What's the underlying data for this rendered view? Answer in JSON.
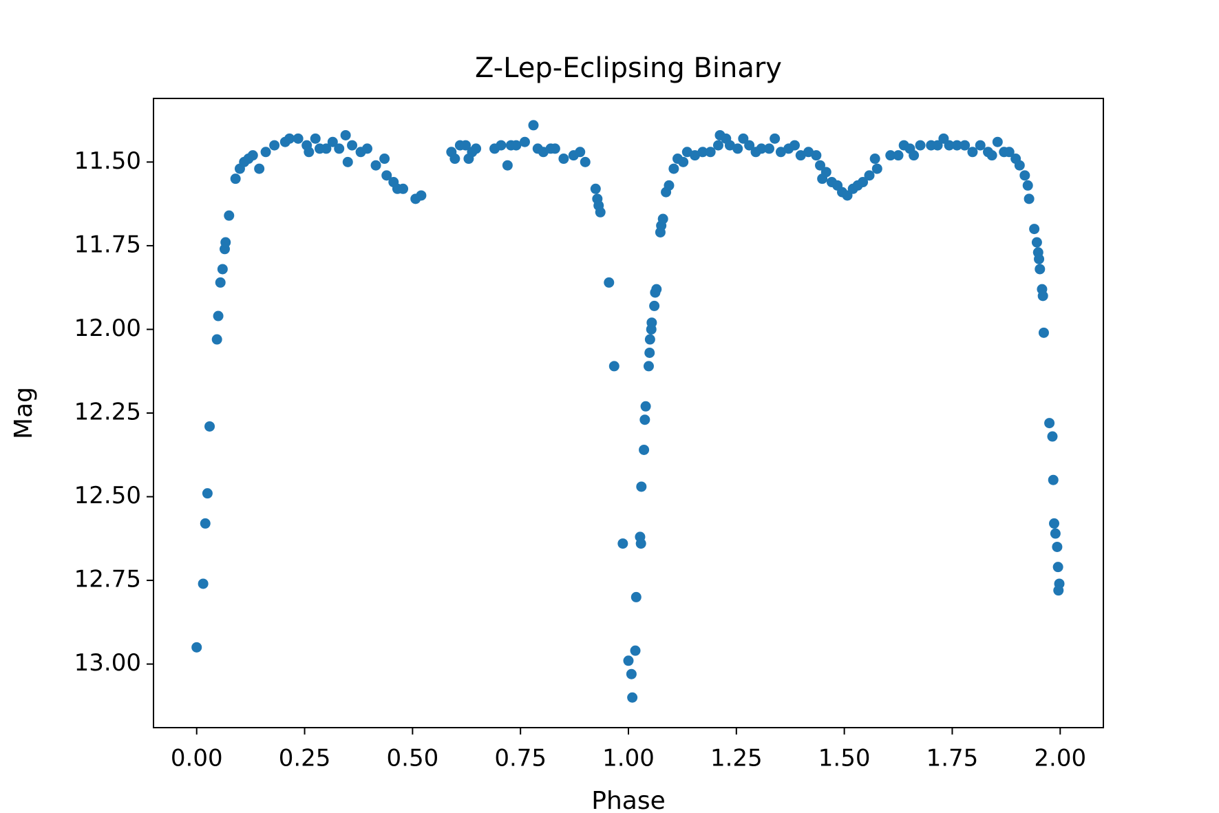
{
  "chart_data": {
    "type": "scatter",
    "title": "Z-Lep-Eclipsing Binary",
    "x_label": "Phase",
    "y_label": "Mag",
    "color": "#1f77b4",
    "invert_y": true,
    "xlim": [
      -0.1,
      2.1
    ],
    "ylim": [
      11.31,
      13.19
    ],
    "xticks": [
      {
        "value": 0,
        "label": "0.00"
      },
      {
        "value": 0.25,
        "label": "0.25"
      },
      {
        "value": 0.5,
        "label": "0.50"
      },
      {
        "value": 0.75,
        "label": "0.75"
      },
      {
        "value": 1,
        "label": "1.00"
      },
      {
        "value": 1.25,
        "label": "1.25"
      },
      {
        "value": 1.5,
        "label": "1.50"
      },
      {
        "value": 1.75,
        "label": "1.75"
      },
      {
        "value": 2,
        "label": "2.00"
      }
    ],
    "yticks": [
      {
        "value": 11.5,
        "label": "11.50"
      },
      {
        "value": 11.75,
        "label": "11.75"
      },
      {
        "value": 12,
        "label": "12.00"
      },
      {
        "value": 12.25,
        "label": "12.25"
      },
      {
        "value": 12.5,
        "label": "12.50"
      },
      {
        "value": 12.75,
        "label": "12.75"
      },
      {
        "value": 13,
        "label": "13.00"
      }
    ],
    "x": [
      0.0,
      0.015,
      0.02,
      0.025,
      0.03,
      0.047,
      0.05,
      0.055,
      0.06,
      0.065,
      0.067,
      0.075,
      0.09,
      0.1,
      0.11,
      0.12,
      0.13,
      0.145,
      0.16,
      0.18,
      0.205,
      0.215,
      0.235,
      0.255,
      0.26,
      0.275,
      0.285,
      0.3,
      0.315,
      0.33,
      0.345,
      0.35,
      0.36,
      0.38,
      0.395,
      0.415,
      0.435,
      0.44,
      0.456,
      0.465,
      0.478,
      0.507,
      0.52,
      0.59,
      0.598,
      0.61,
      0.623,
      0.63,
      0.638,
      0.647,
      0.69,
      0.705,
      0.72,
      0.728,
      0.74,
      0.76,
      0.78,
      0.79,
      0.803,
      0.82,
      0.83,
      0.85,
      0.873,
      0.888,
      0.9,
      0.924,
      0.928,
      0.931,
      0.935,
      0.955,
      0.967,
      0.987,
      1.0,
      1.007,
      1.009,
      1.016,
      1.018,
      1.027,
      1.029,
      1.03,
      1.036,
      1.038,
      1.04,
      1.047,
      1.049,
      1.05,
      1.053,
      1.054,
      1.06,
      1.062,
      1.065,
      1.074,
      1.076,
      1.08,
      1.087,
      1.094,
      1.105,
      1.114,
      1.127,
      1.136,
      1.154,
      1.172,
      1.19,
      1.208,
      1.212,
      1.226,
      1.235,
      1.253,
      1.266,
      1.28,
      1.295,
      1.308,
      1.326,
      1.339,
      1.353,
      1.371,
      1.385,
      1.399,
      1.417,
      1.435,
      1.444,
      1.449,
      1.458,
      1.471,
      1.484,
      1.495,
      1.507,
      1.52,
      1.531,
      1.543,
      1.558,
      1.571,
      1.576,
      1.607,
      1.625,
      1.638,
      1.652,
      1.661,
      1.676,
      1.701,
      1.716,
      1.73,
      1.743,
      1.761,
      1.779,
      1.797,
      1.815,
      1.833,
      1.842,
      1.855,
      1.87,
      1.882,
      1.897,
      1.906,
      1.918,
      1.925,
      1.928,
      1.94,
      1.946,
      1.949,
      1.951,
      1.953,
      1.958,
      1.96,
      1.962,
      1.975,
      1.982,
      1.984,
      1.986,
      1.989,
      1.993,
      1.995,
      1.998,
      1.996
    ],
    "y": [
      12.95,
      12.76,
      12.58,
      12.49,
      12.29,
      12.03,
      11.96,
      11.86,
      11.82,
      11.76,
      11.74,
      11.66,
      11.55,
      11.52,
      11.5,
      11.49,
      11.48,
      11.52,
      11.47,
      11.45,
      11.44,
      11.43,
      11.43,
      11.45,
      11.47,
      11.43,
      11.46,
      11.46,
      11.44,
      11.46,
      11.42,
      11.5,
      11.45,
      11.47,
      11.46,
      11.51,
      11.49,
      11.54,
      11.56,
      11.58,
      11.58,
      11.61,
      11.6,
      11.47,
      11.49,
      11.45,
      11.45,
      11.49,
      11.47,
      11.46,
      11.46,
      11.45,
      11.51,
      11.45,
      11.45,
      11.44,
      11.39,
      11.46,
      11.47,
      11.46,
      11.46,
      11.49,
      11.48,
      11.47,
      11.5,
      11.58,
      11.61,
      11.63,
      11.65,
      11.86,
      12.11,
      12.64,
      12.99,
      13.03,
      13.1,
      12.96,
      12.8,
      12.62,
      12.64,
      12.47,
      12.36,
      12.27,
      12.23,
      12.11,
      12.07,
      12.03,
      12.0,
      11.98,
      11.93,
      11.89,
      11.88,
      11.71,
      11.69,
      11.67,
      11.59,
      11.57,
      11.52,
      11.49,
      11.5,
      11.47,
      11.48,
      11.47,
      11.47,
      11.45,
      11.42,
      11.43,
      11.45,
      11.46,
      11.43,
      11.45,
      11.47,
      11.46,
      11.46,
      11.43,
      11.47,
      11.46,
      11.45,
      11.48,
      11.47,
      11.48,
      11.51,
      11.55,
      11.53,
      11.56,
      11.57,
      11.59,
      11.6,
      11.58,
      11.57,
      11.56,
      11.54,
      11.49,
      11.52,
      11.48,
      11.48,
      11.45,
      11.46,
      11.48,
      11.45,
      11.45,
      11.45,
      11.43,
      11.45,
      11.45,
      11.45,
      11.47,
      11.45,
      11.47,
      11.48,
      11.44,
      11.47,
      11.47,
      11.49,
      11.51,
      11.54,
      11.57,
      11.61,
      11.7,
      11.74,
      11.77,
      11.79,
      11.82,
      11.88,
      11.9,
      12.01,
      12.28,
      12.32,
      12.45,
      12.58,
      12.61,
      12.65,
      12.71,
      12.76,
      12.78
    ]
  }
}
